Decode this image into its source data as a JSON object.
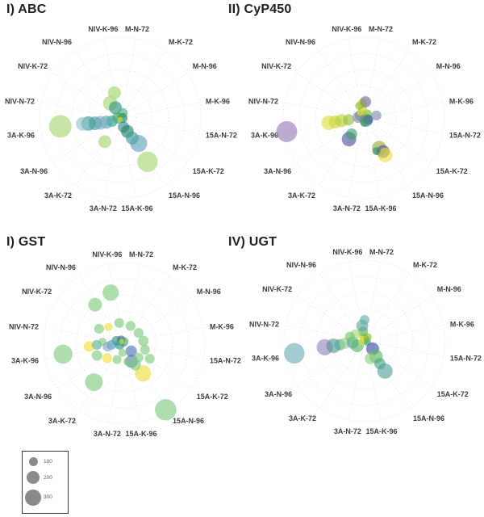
{
  "figure": {
    "background": "#ffffff",
    "grid_color": "#e3e1e1"
  },
  "bubble_format": [
    "angle_deg_clockwise_from_top",
    "radius_fraction_0_to_1",
    "size_value_legend_units",
    "color"
  ],
  "chart_data": [
    {
      "type": "polar-bubble",
      "title": "I) ABC",
      "categories": [
        "M-N-72",
        "M-K-72",
        "M-N-96",
        "M-K-96",
        "15A-N-72",
        "15A-K-72",
        "15A-N-96",
        "15A-K-96",
        "3A-N-72",
        "3A-K-72",
        "3A-N-96",
        "3A-K-96",
        "NIV-N-72",
        "NIV-K-72",
        "NIV-N-96",
        "NIV-K-96"
      ],
      "rings": 5,
      "radial_range": [
        0,
        1
      ],
      "bubbles": [
        [
          347,
          0.32,
          190,
          "#9fd46a"
        ],
        [
          326,
          0.22,
          240,
          "#a4d66c"
        ],
        [
          335,
          0.14,
          190,
          "#2a8f80"
        ],
        [
          27,
          0.07,
          110,
          "#49a888"
        ],
        [
          248,
          0.11,
          145,
          "#2f9e8f"
        ],
        [
          253,
          0.18,
          190,
          "#55a5ad"
        ],
        [
          256,
          0.25,
          215,
          "#7fb2c7"
        ],
        [
          258,
          0.32,
          215,
          "#55a0b0"
        ],
        [
          260,
          0.4,
          240,
          "#3a9a8e"
        ],
        [
          261,
          0.47,
          215,
          "#8fc1cf"
        ],
        [
          262,
          0.75,
          580,
          "#a5d76e"
        ],
        [
          213,
          0.35,
          190,
          "#a5d76e"
        ],
        [
          160,
          0.12,
          145,
          "#2d8f84"
        ],
        [
          152,
          0.19,
          190,
          "#23806b"
        ],
        [
          149,
          0.29,
          190,
          "#2f9e8f"
        ],
        [
          144,
          0.39,
          330,
          "#5b9fb5"
        ],
        [
          148,
          0.64,
          480,
          "#a5d76e"
        ],
        [
          0,
          0.02,
          75,
          "#b5d93a"
        ],
        [
          90,
          0.03,
          110,
          "#1e7f60"
        ],
        [
          270,
          0.03,
          145,
          "#3fa36b"
        ],
        [
          180,
          0.02,
          30,
          "#e8e337"
        ]
      ]
    },
    {
      "type": "polar-bubble",
      "title": "II) CyP450",
      "categories": [
        "M-N-72",
        "M-K-72",
        "M-N-96",
        "M-K-96",
        "15A-N-72",
        "15A-K-72",
        "15A-N-96",
        "15A-K-96",
        "3A-N-72",
        "3A-K-72",
        "3A-N-96",
        "3A-K-96",
        "NIV-N-72",
        "NIV-K-72",
        "NIV-N-96",
        "NIV-K-96"
      ],
      "rings": 5,
      "radial_range": [
        0,
        1
      ],
      "bubbles": [
        [
          260,
          0.97,
          500,
          "#9678b6"
        ],
        [
          262,
          0.44,
          240,
          "#dddd3e"
        ],
        [
          262,
          0.36,
          190,
          "#cdd63a"
        ],
        [
          263,
          0.28,
          190,
          "#b6cf35"
        ],
        [
          263,
          0.19,
          145,
          "#8fbf3a"
        ],
        [
          307,
          0.05,
          145,
          "#2a9d68"
        ],
        [
          135,
          0.04,
          190,
          "#22967f"
        ],
        [
          45,
          0.06,
          110,
          "#79b43a"
        ],
        [
          352,
          0.09,
          110,
          "#c3d32f"
        ],
        [
          277,
          0.07,
          145,
          "#8a7fae"
        ],
        [
          112,
          0.06,
          110,
          "#4a5aa0"
        ],
        [
          175,
          0.06,
          75,
          "#3f8f5f"
        ],
        [
          325,
          0.08,
          50,
          "#e3df3a"
        ],
        [
          354,
          0.18,
          110,
          "#d9d43c"
        ],
        [
          6,
          0.2,
          145,
          "#6b6b93"
        ],
        [
          340,
          0.16,
          75,
          "#8ab92d"
        ],
        [
          79,
          0.16,
          110,
          "#7b88b8"
        ],
        [
          215,
          0.32,
          240,
          "#4a4f9b"
        ],
        [
          217,
          0.25,
          145,
          "#3fa06a"
        ],
        [
          153,
          0.42,
          240,
          "#8fae2e"
        ],
        [
          150,
          0.48,
          190,
          "#574a9e"
        ],
        [
          150,
          0.53,
          240,
          "#e8e03c"
        ],
        [
          159,
          0.44,
          75,
          "#2f8f6f"
        ]
      ]
    },
    {
      "type": "polar-bubble",
      "title": "I) GST",
      "categories": [
        "M-N-72",
        "M-K-72",
        "M-N-96",
        "M-K-96",
        "15A-N-72",
        "15A-K-72",
        "15A-N-96",
        "15A-K-96",
        "3A-N-72",
        "3A-K-72",
        "3A-N-96",
        "3A-K-96",
        "NIV-N-72",
        "NIV-K-72",
        "NIV-N-96",
        "NIV-K-96"
      ],
      "rings": 5,
      "radial_range": [
        0,
        1
      ],
      "bubbles": [
        [
          345,
          0.65,
          300,
          "#7cc87c"
        ],
        [
          323,
          0.6,
          215,
          "#7cc87c"
        ],
        [
          260,
          0.77,
          410,
          "#7cc87c"
        ],
        [
          218,
          0.61,
          360,
          "#7cc87c"
        ],
        [
          148,
          0.97,
          525,
          "#7cc87c"
        ],
        [
          148,
          0.44,
          300,
          "#f0dd38"
        ],
        [
          158,
          0.24,
          190,
          "#5577be"
        ],
        [
          153,
          0.3,
          145,
          "#7cc87c"
        ],
        [
          138,
          0.13,
          145,
          "#4a6fb0"
        ],
        [
          316,
          0.28,
          75,
          "#f0dd38"
        ],
        [
          300,
          0.36,
          110,
          "#7cc87c"
        ],
        [
          346,
          0.26,
          110,
          "#7cc87c"
        ],
        [
          20,
          0.23,
          110,
          "#7cc87c"
        ],
        [
          54,
          0.22,
          110,
          "#7cc87c"
        ],
        [
          83,
          0.24,
          125,
          "#7cc87c"
        ],
        [
          107,
          0.27,
          110,
          "#7cc87c"
        ],
        [
          121,
          0.37,
          110,
          "#7cc87c"
        ],
        [
          135,
          0.25,
          110,
          "#7cc87c"
        ],
        [
          170,
          0.23,
          75,
          "#7cc87c"
        ],
        [
          204,
          0.22,
          90,
          "#7cc87c"
        ],
        [
          229,
          0.28,
          110,
          "#f0dd38"
        ],
        [
          246,
          0.37,
          125,
          "#7cc87c"
        ],
        [
          265,
          0.44,
          125,
          "#f0dd38"
        ],
        [
          267,
          0.34,
          110,
          "#58b098"
        ],
        [
          274,
          0.27,
          75,
          "#7cc87c"
        ],
        [
          288,
          0.1,
          110,
          "#2a8f80"
        ],
        [
          321,
          0.06,
          75,
          "#39568f"
        ],
        [
          333,
          0.02,
          110,
          "#3fa36b"
        ],
        [
          252,
          0.06,
          110,
          "#35958a"
        ],
        [
          304,
          0.04,
          30,
          "#e8e337"
        ],
        [
          263,
          0.16,
          110,
          "#4a9bb5"
        ],
        [
          259,
          0.21,
          110,
          "#7fa8c9"
        ],
        [
          190,
          0.12,
          75,
          "#7cc87c"
        ]
      ]
    },
    {
      "type": "polar-bubble",
      "title": "IV) UGT",
      "categories": [
        "M-N-72",
        "M-K-72",
        "M-N-96",
        "M-K-96",
        "15A-N-72",
        "15A-K-72",
        "15A-N-96",
        "15A-K-96",
        "3A-N-72",
        "3A-K-72",
        "3A-N-96",
        "3A-K-96",
        "NIV-N-72",
        "NIV-K-72",
        "NIV-N-96",
        "NIV-K-96"
      ],
      "rings": 5,
      "radial_range": [
        0,
        1
      ],
      "bubbles": [
        [
          260,
          0.885,
          480,
          "#6aacb4"
        ],
        [
          261,
          0.5,
          300,
          "#9182bb"
        ],
        [
          261,
          0.39,
          240,
          "#4f9a94"
        ],
        [
          261,
          0.31,
          145,
          "#55a39b"
        ],
        [
          263,
          0.25,
          145,
          "#94d381"
        ],
        [
          262,
          0.15,
          165,
          "#52a09a"
        ],
        [
          236,
          0.11,
          190,
          "#5bb55f"
        ],
        [
          0,
          0.02,
          110,
          "#79b43a"
        ],
        [
          342,
          0.06,
          75,
          "#e2dd35"
        ],
        [
          109,
          0.03,
          75,
          "#3fa06a"
        ],
        [
          256,
          0.04,
          50,
          "#e8e337"
        ],
        [
          39,
          0.06,
          75,
          "#8ab92d"
        ],
        [
          351,
          0.12,
          110,
          "#5bb55f"
        ],
        [
          351,
          0.19,
          165,
          "#55a8a0"
        ],
        [
          0,
          0.26,
          110,
          "#62afa8"
        ],
        [
          306,
          0.14,
          110,
          "#a2d96e"
        ],
        [
          286,
          0.19,
          110,
          "#70c06b"
        ],
        [
          135,
          0.14,
          190,
          "#3c4a9e"
        ],
        [
          144,
          0.24,
          215,
          "#55b65a"
        ],
        [
          162,
          0.23,
          145,
          "#90d080"
        ],
        [
          146,
          0.34,
          145,
          "#49a888"
        ],
        [
          146,
          0.45,
          270,
          "#4f9e97"
        ]
      ]
    }
  ],
  "legend": {
    "circle_color": "#8a8a8a",
    "items": [
      {
        "size": "100"
      },
      {
        "size": "200"
      },
      {
        "size": "300"
      }
    ]
  }
}
